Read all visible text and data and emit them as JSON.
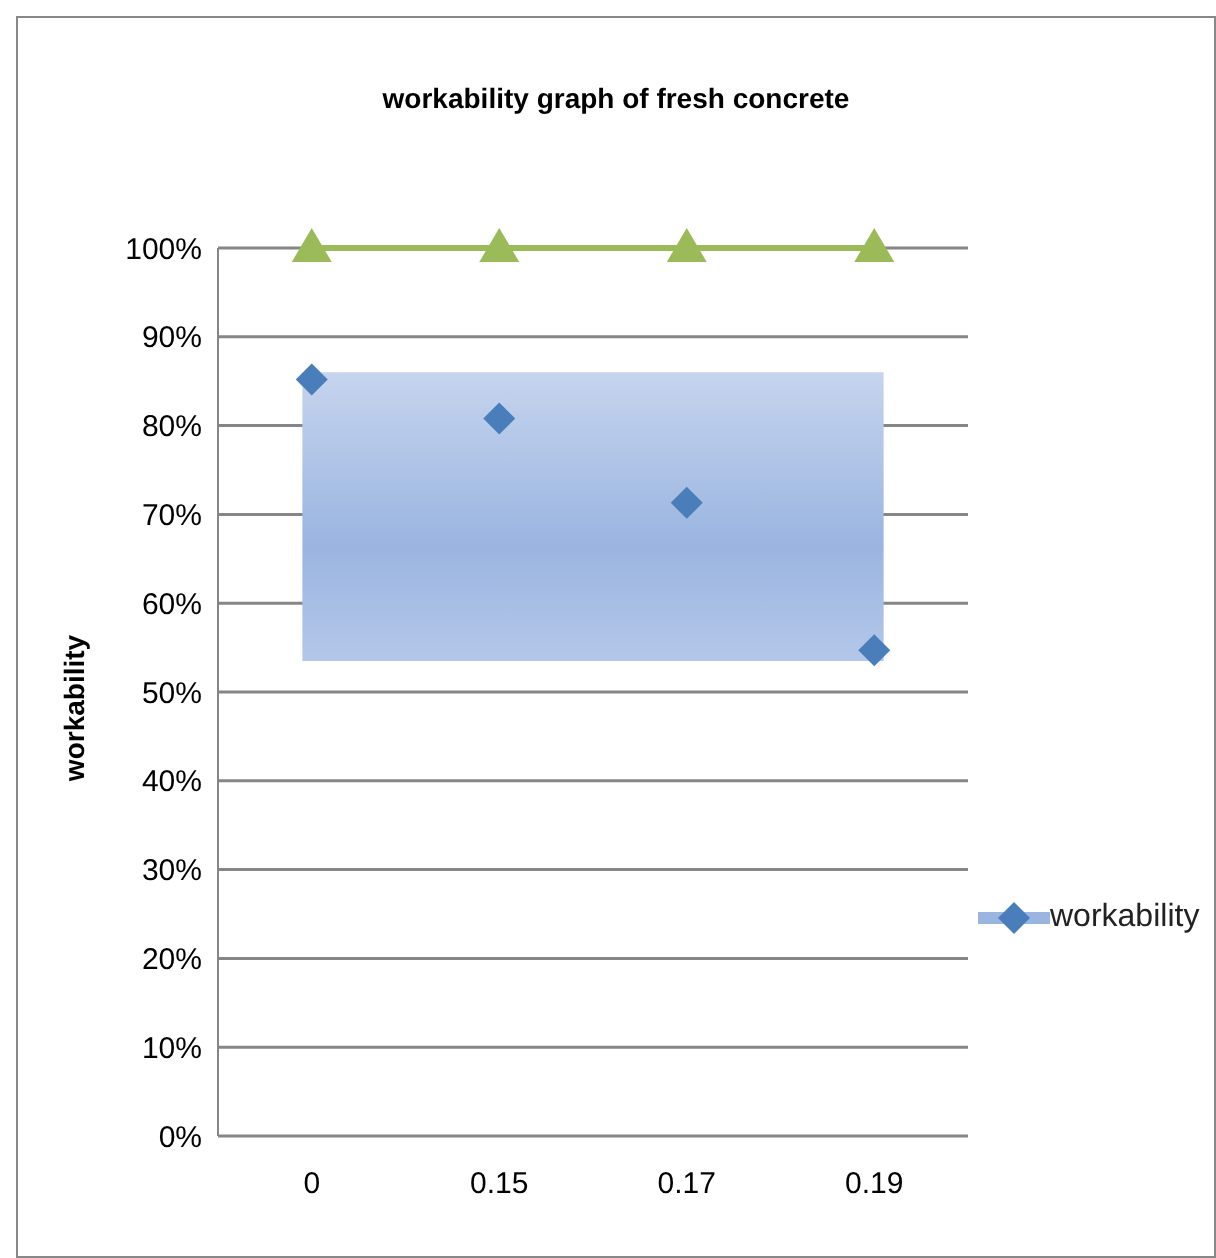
{
  "chart_data": {
    "type": "scatter",
    "title": "workability graph of fresh concrete",
    "ylabel": "workability",
    "categories": [
      "0",
      "0.15",
      "0.17",
      "0.19"
    ],
    "series": [
      {
        "name": "workability",
        "color": "#4a7ebb",
        "marker": "diamond",
        "values": [
          85.2,
          80.8,
          71.3,
          54.7
        ]
      },
      {
        "type": "line",
        "color": "#9bbb59",
        "marker": "triangle",
        "values": [
          100,
          100,
          100,
          100
        ]
      }
    ],
    "bands": [
      {
        "axis": "y",
        "from": 53.5,
        "to": 86,
        "color": "#9ab5e0"
      }
    ],
    "ylim": [
      0,
      100
    ],
    "yticks": [
      {
        "value": 0,
        "label": "0%"
      },
      {
        "value": 10,
        "label": "10%"
      },
      {
        "value": 20,
        "label": "20%"
      },
      {
        "value": 30,
        "label": "30%"
      },
      {
        "value": 40,
        "label": "40%"
      },
      {
        "value": 50,
        "label": "50%"
      },
      {
        "value": 60,
        "label": "60%"
      },
      {
        "value": 70,
        "label": "70%"
      },
      {
        "value": 80,
        "label": "80%"
      },
      {
        "value": 90,
        "label": "90%"
      },
      {
        "value": 100,
        "label": "100%"
      }
    ],
    "grid": "y",
    "legend": "right"
  }
}
